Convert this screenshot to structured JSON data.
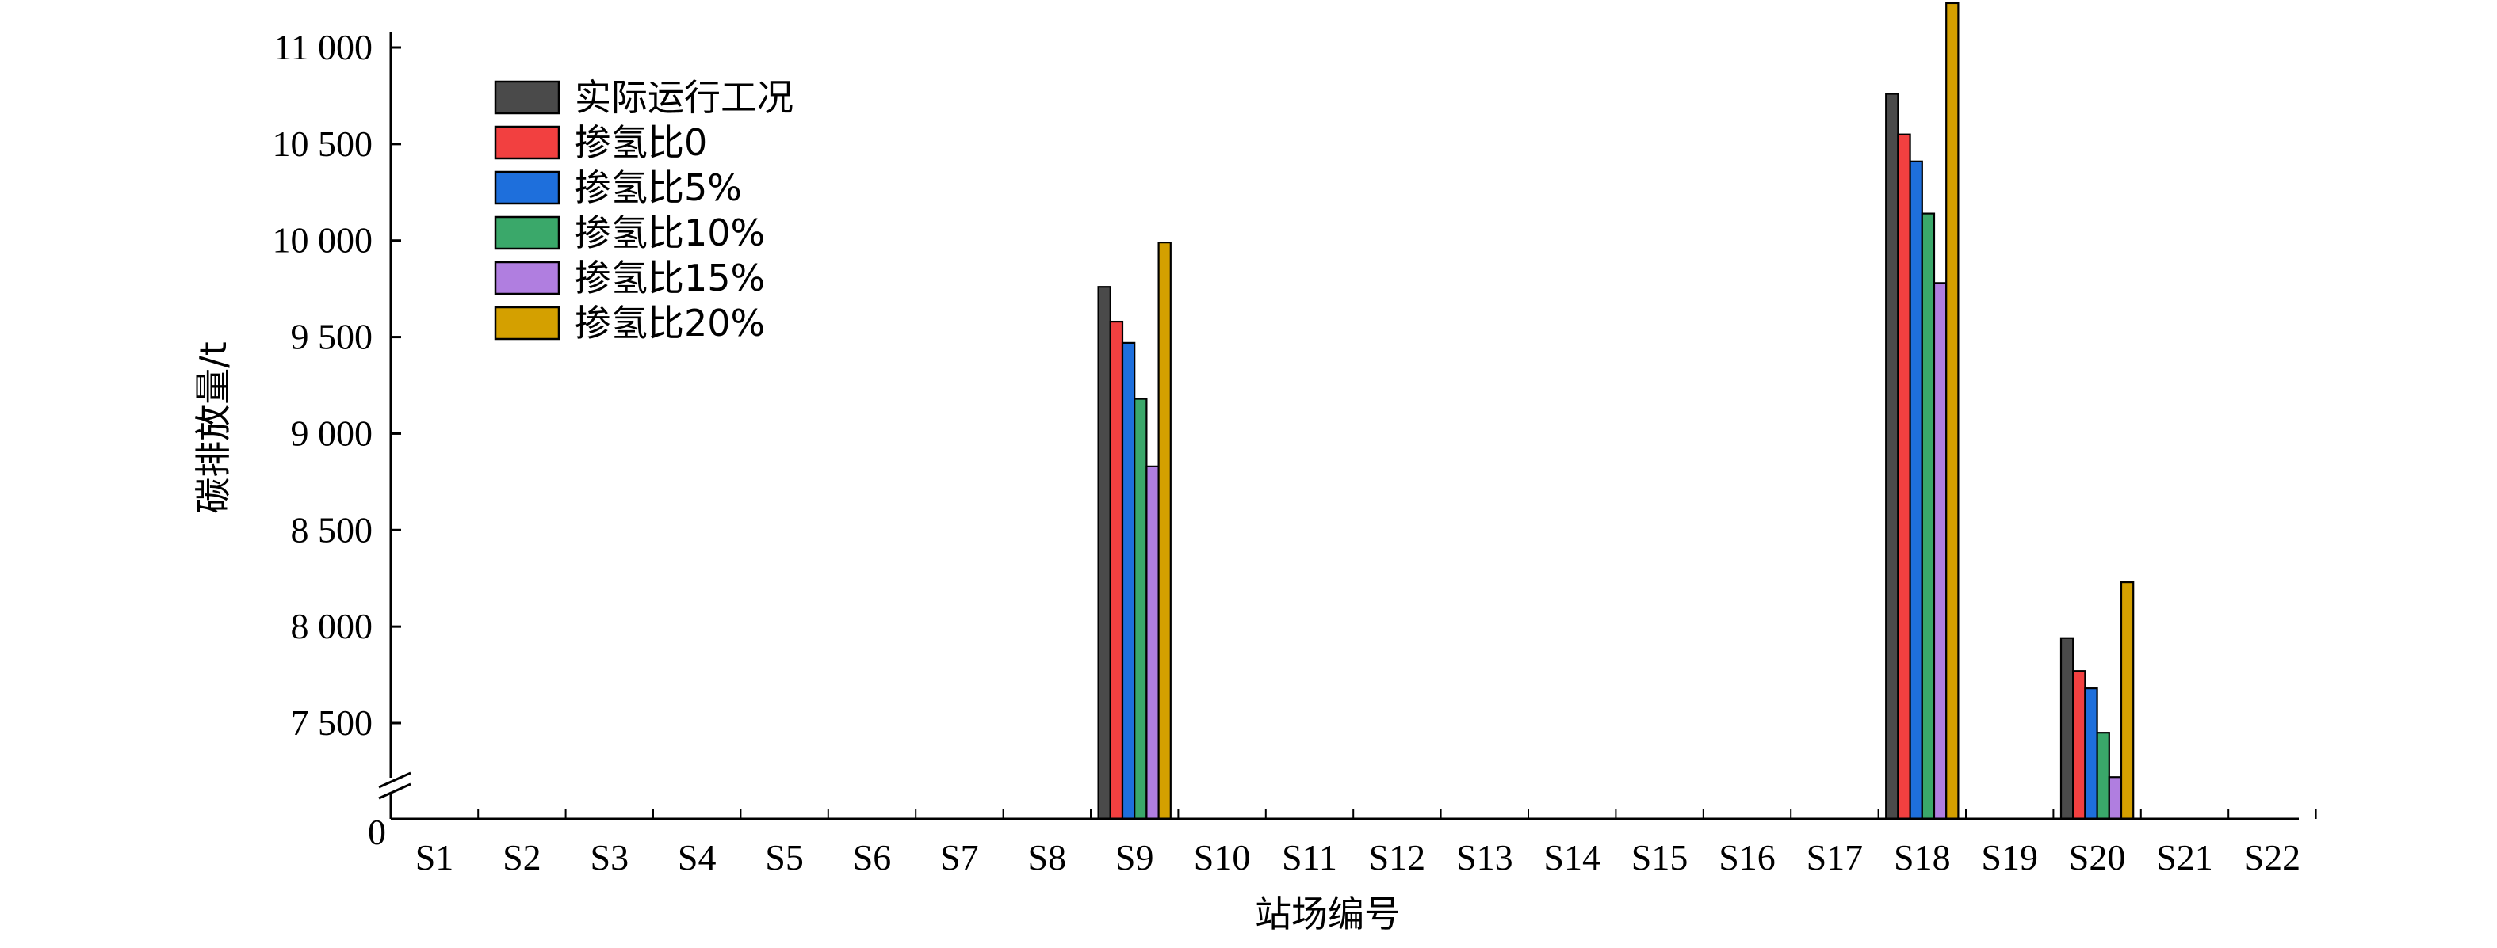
{
  "chart_data": {
    "type": "bar",
    "xlabel": "站场编号",
    "ylabel": "碳排放量/t",
    "categories": [
      "S1",
      "S2",
      "S3",
      "S4",
      "S5",
      "S6",
      "S7",
      "S8",
      "S9",
      "S10",
      "S11",
      "S12",
      "S13",
      "S14",
      "S15",
      "S16",
      "S17",
      "S18",
      "S19",
      "S20",
      "S21",
      "S22"
    ],
    "y_ticks": [
      {
        "value": 0,
        "label": "0"
      },
      {
        "value": 7500,
        "label": "7 500"
      },
      {
        "value": 8000,
        "label": "8 000"
      },
      {
        "value": 8500,
        "label": "8 500"
      },
      {
        "value": 9000,
        "label": "9 000"
      },
      {
        "value": 9500,
        "label": "9 500"
      },
      {
        "value": 10000,
        "label": "10 000"
      },
      {
        "value": 10500,
        "label": "10 500"
      },
      {
        "value": 11000,
        "label": "11 000"
      }
    ],
    "ylim": [
      0,
      11000
    ],
    "y_axis_break": [
      0,
      7000
    ],
    "legend_position": "top-left",
    "grid": false,
    "series": [
      {
        "name": "实际运行工况",
        "color": "#4a4a4a",
        "values": [
          0,
          0,
          0,
          0,
          0,
          0,
          0,
          0,
          9760,
          0,
          0,
          0,
          0,
          0,
          0,
          0,
          0,
          10760,
          0,
          7940,
          0,
          0
        ]
      },
      {
        "name": "掺氢比0",
        "color": "#f24040",
        "values": [
          0,
          0,
          0,
          0,
          0,
          0,
          0,
          0,
          9580,
          0,
          0,
          0,
          0,
          0,
          0,
          0,
          0,
          10550,
          0,
          7770,
          0,
          0
        ]
      },
      {
        "name": "掺氢比5%",
        "color": "#1e6fdc",
        "values": [
          0,
          0,
          0,
          0,
          0,
          0,
          0,
          0,
          9470,
          0,
          0,
          0,
          0,
          0,
          0,
          0,
          0,
          10410,
          0,
          7680,
          0,
          0
        ]
      },
      {
        "name": "掺氢比10%",
        "color": "#3aa86a",
        "values": [
          0,
          0,
          0,
          0,
          0,
          0,
          0,
          0,
          9180,
          0,
          0,
          0,
          0,
          0,
          0,
          0,
          0,
          10140,
          0,
          7450,
          0,
          0
        ]
      },
      {
        "name": "掺氢比15%",
        "color": "#b07ee0",
        "values": [
          0,
          0,
          0,
          0,
          0,
          0,
          0,
          0,
          8830,
          0,
          0,
          0,
          0,
          0,
          0,
          0,
          0,
          9780,
          0,
          7220,
          0,
          0
        ]
      },
      {
        "name": "掺氢比20%",
        "color": "#d4a000",
        "values": [
          0,
          0,
          0,
          0,
          0,
          0,
          0,
          0,
          9990,
          0,
          0,
          0,
          0,
          0,
          0,
          0,
          0,
          11230,
          0,
          8230,
          0,
          0
        ]
      }
    ]
  }
}
